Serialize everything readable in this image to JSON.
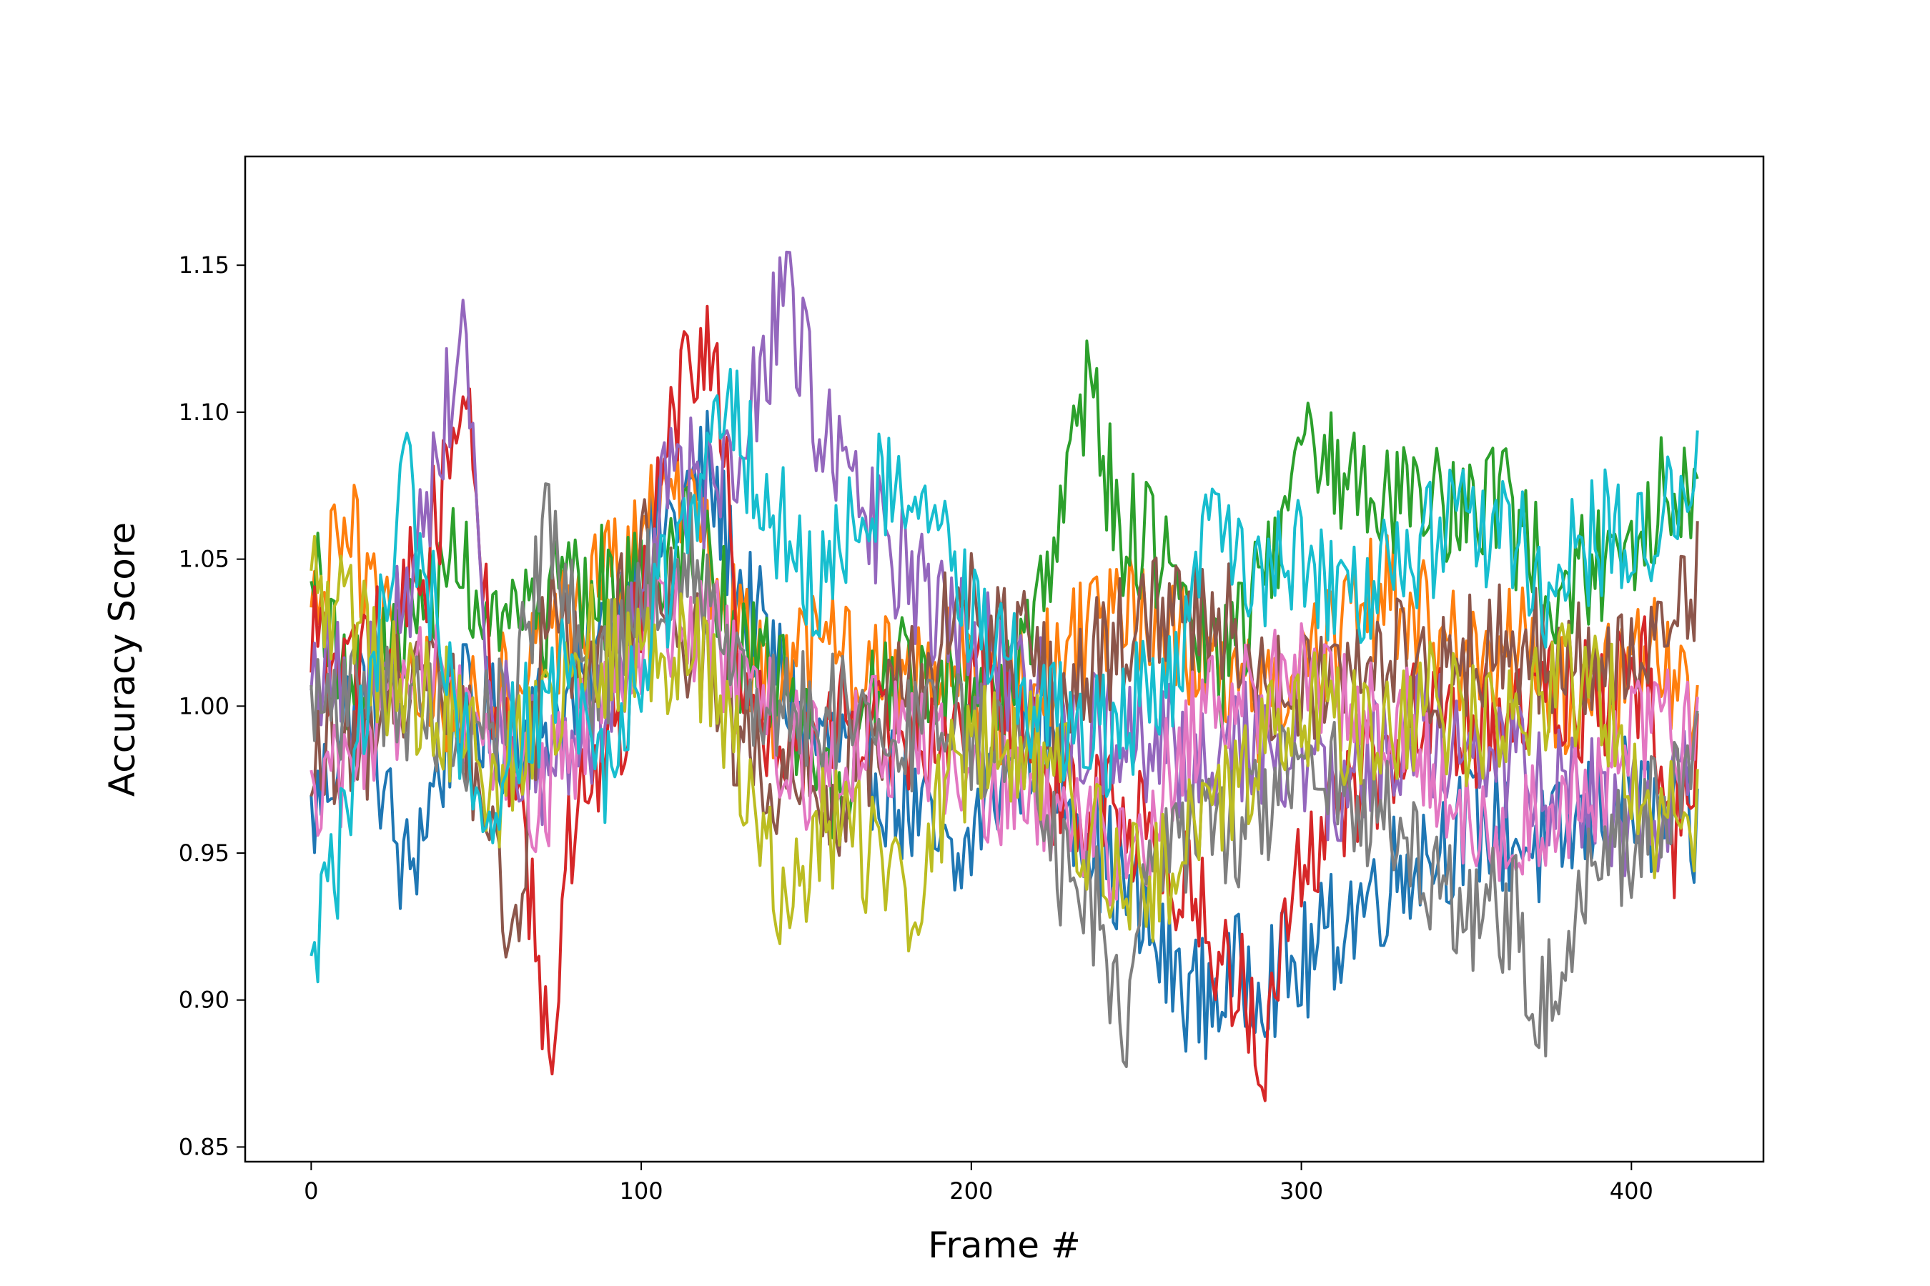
{
  "chart_data": {
    "type": "line",
    "title": "",
    "xlabel": "Frame #",
    "ylabel": "Accuracy Score",
    "xlim": [
      -20,
      440
    ],
    "ylim": [
      0.845,
      1.187
    ],
    "xticks": [
      0,
      100,
      200,
      300,
      400
    ],
    "xtick_labels": [
      "0",
      "100",
      "200",
      "300",
      "400"
    ],
    "yticks": [
      0.85,
      0.9,
      0.95,
      1.0,
      1.05,
      1.1,
      1.15
    ],
    "ytick_labels": [
      "0.85",
      "0.90",
      "0.95",
      "1.00",
      "1.05",
      "1.10",
      "1.15"
    ],
    "grid": false,
    "legend": "none",
    "x_range": [
      0,
      420
    ],
    "series": [
      {
        "color": "#1f77b4",
        "knots": [
          [
            0,
            0.96
          ],
          [
            15,
            1.01
          ],
          [
            28,
            0.94
          ],
          [
            45,
            1.0
          ],
          [
            60,
            0.99
          ],
          [
            80,
            1.0
          ],
          [
            100,
            1.05
          ],
          [
            120,
            1.08
          ],
          [
            130,
            1.04
          ],
          [
            150,
            0.99
          ],
          [
            170,
            0.98
          ],
          [
            185,
            0.96
          ],
          [
            195,
            0.94
          ],
          [
            205,
            0.97
          ],
          [
            220,
            0.99
          ],
          [
            240,
            0.95
          ],
          [
            250,
            0.93
          ],
          [
            260,
            0.91
          ],
          [
            270,
            0.9
          ],
          [
            285,
            0.91
          ],
          [
            300,
            0.91
          ],
          [
            315,
            0.93
          ],
          [
            335,
            0.95
          ],
          [
            355,
            0.96
          ],
          [
            375,
            0.95
          ],
          [
            395,
            0.97
          ],
          [
            410,
            0.96
          ],
          [
            420,
            0.955
          ]
        ]
      },
      {
        "color": "#ff7f0e",
        "knots": [
          [
            0,
            1.03
          ],
          [
            12,
            1.06
          ],
          [
            25,
            1.02
          ],
          [
            40,
            1.0
          ],
          [
            60,
            1.01
          ],
          [
            80,
            1.03
          ],
          [
            95,
            1.05
          ],
          [
            110,
            1.07
          ],
          [
            125,
            1.04
          ],
          [
            140,
            1.0
          ],
          [
            155,
            1.02
          ],
          [
            170,
            1.01
          ],
          [
            190,
            1.02
          ],
          [
            210,
            1.0
          ],
          [
            230,
            1.02
          ],
          [
            250,
            1.03
          ],
          [
            270,
            1.02
          ],
          [
            290,
            1.0
          ],
          [
            310,
            1.02
          ],
          [
            325,
            1.04
          ],
          [
            345,
            1.02
          ],
          [
            365,
            1.02
          ],
          [
            385,
            1.0
          ],
          [
            405,
            1.02
          ],
          [
            420,
            0.99
          ]
        ]
      },
      {
        "color": "#2ca02c",
        "knots": [
          [
            0,
            1.045
          ],
          [
            15,
            1.0
          ],
          [
            30,
            1.03
          ],
          [
            45,
            1.05
          ],
          [
            60,
            1.02
          ],
          [
            80,
            1.04
          ],
          [
            100,
            1.04
          ],
          [
            115,
            1.06
          ],
          [
            130,
            1.02
          ],
          [
            145,
            1.0
          ],
          [
            160,
            0.97
          ],
          [
            175,
            1.01
          ],
          [
            195,
            1.0
          ],
          [
            215,
            1.01
          ],
          [
            225,
            1.05
          ],
          [
            235,
            1.11
          ],
          [
            245,
            1.06
          ],
          [
            260,
            1.05
          ],
          [
            275,
            1.01
          ],
          [
            290,
            1.05
          ],
          [
            300,
            1.09
          ],
          [
            310,
            1.08
          ],
          [
            325,
            1.075
          ],
          [
            345,
            1.07
          ],
          [
            360,
            1.07
          ],
          [
            375,
            1.04
          ],
          [
            390,
            1.05
          ],
          [
            405,
            1.06
          ],
          [
            412,
            1.08
          ],
          [
            420,
            1.06
          ]
        ]
      },
      {
        "color": "#d62728",
        "knots": [
          [
            0,
            1.02
          ],
          [
            15,
            1.01
          ],
          [
            35,
            1.05
          ],
          [
            47,
            1.11
          ],
          [
            55,
            1.01
          ],
          [
            65,
            0.95
          ],
          [
            72,
            0.88
          ],
          [
            80,
            0.97
          ],
          [
            95,
            1.0
          ],
          [
            110,
            1.1
          ],
          [
            122,
            1.12
          ],
          [
            130,
            1.02
          ],
          [
            140,
            0.99
          ],
          [
            150,
            0.98
          ],
          [
            165,
            1.0
          ],
          [
            185,
            0.99
          ],
          [
            205,
            1.01
          ],
          [
            225,
            0.97
          ],
          [
            245,
            0.96
          ],
          [
            260,
            0.95
          ],
          [
            270,
            0.93
          ],
          [
            280,
            0.91
          ],
          [
            288,
            0.88
          ],
          [
            300,
            0.95
          ],
          [
            315,
            0.97
          ],
          [
            330,
            0.99
          ],
          [
            345,
            1.0
          ],
          [
            360,
            0.99
          ],
          [
            375,
            1.01
          ],
          [
            390,
            1.0
          ],
          [
            405,
            1.01
          ],
          [
            412,
            0.95
          ],
          [
            420,
            0.98
          ]
        ]
      },
      {
        "color": "#9467bd",
        "knots": [
          [
            0,
            1.02
          ],
          [
            15,
            1.0
          ],
          [
            30,
            1.04
          ],
          [
            46,
            1.13
          ],
          [
            55,
            1.0
          ],
          [
            70,
            0.98
          ],
          [
            90,
            1.0
          ],
          [
            110,
            1.08
          ],
          [
            125,
            1.07
          ],
          [
            135,
            1.11
          ],
          [
            145,
            1.14
          ],
          [
            155,
            1.09
          ],
          [
            170,
            1.06
          ],
          [
            185,
            1.04
          ],
          [
            200,
            1.02
          ],
          [
            215,
            1.01
          ],
          [
            235,
            0.99
          ],
          [
            250,
            0.99
          ],
          [
            270,
            0.98
          ],
          [
            290,
            0.99
          ],
          [
            310,
            0.97
          ],
          [
            330,
            0.99
          ],
          [
            345,
            0.99
          ],
          [
            365,
            0.98
          ],
          [
            385,
            0.97
          ],
          [
            405,
            0.96
          ],
          [
            420,
            0.985
          ]
        ]
      },
      {
        "color": "#8c564b",
        "knots": [
          [
            0,
            0.99
          ],
          [
            10,
            0.98
          ],
          [
            25,
            1.0
          ],
          [
            35,
            1.02
          ],
          [
            50,
            0.98
          ],
          [
            62,
            0.92
          ],
          [
            72,
            1.04
          ],
          [
            85,
            1.01
          ],
          [
            100,
            1.05
          ],
          [
            115,
            1.02
          ],
          [
            130,
            0.99
          ],
          [
            140,
            0.97
          ],
          [
            160,
            0.97
          ],
          [
            180,
            1.01
          ],
          [
            195,
            1.03
          ],
          [
            210,
            1.03
          ],
          [
            225,
            1.0
          ],
          [
            240,
            1.02
          ],
          [
            260,
            1.03
          ],
          [
            275,
            1.03
          ],
          [
            290,
            1.01
          ],
          [
            305,
            1.0
          ],
          [
            325,
            1.02
          ],
          [
            340,
            1.01
          ],
          [
            360,
            1.02
          ],
          [
            380,
            1.02
          ],
          [
            395,
            1.01
          ],
          [
            410,
            1.02
          ],
          [
            416,
            1.04
          ],
          [
            420,
            1.045
          ]
        ]
      },
      {
        "color": "#e377c2",
        "knots": [
          [
            0,
            0.96
          ],
          [
            10,
            0.98
          ],
          [
            25,
            1.0
          ],
          [
            40,
            1.01
          ],
          [
            55,
            0.99
          ],
          [
            70,
            0.97
          ],
          [
            85,
            1.0
          ],
          [
            105,
            1.03
          ],
          [
            120,
            1.03
          ],
          [
            135,
            1.0
          ],
          [
            150,
            0.98
          ],
          [
            170,
            0.99
          ],
          [
            190,
            0.98
          ],
          [
            210,
            0.97
          ],
          [
            230,
            0.96
          ],
          [
            250,
            0.95
          ],
          [
            265,
            0.99
          ],
          [
            280,
            1.0
          ],
          [
            295,
            1.01
          ],
          [
            315,
            1.0
          ],
          [
            335,
            0.99
          ],
          [
            355,
            0.96
          ],
          [
            375,
            0.96
          ],
          [
            395,
            0.98
          ],
          [
            410,
            1.0
          ],
          [
            420,
            0.985
          ]
        ]
      },
      {
        "color": "#7f7f7f",
        "knots": [
          [
            0,
            0.995
          ],
          [
            15,
            1.01
          ],
          [
            30,
            1.0
          ],
          [
            45,
            0.99
          ],
          [
            60,
            1.0
          ],
          [
            72,
            1.06
          ],
          [
            85,
            1.0
          ],
          [
            100,
            1.04
          ],
          [
            115,
            1.05
          ],
          [
            130,
            1.0
          ],
          [
            145,
            1.0
          ],
          [
            160,
            1.0
          ],
          [
            175,
            0.99
          ],
          [
            195,
            0.99
          ],
          [
            210,
            0.99
          ],
          [
            225,
            0.95
          ],
          [
            240,
            0.93
          ],
          [
            246,
            0.88
          ],
          [
            255,
            0.95
          ],
          [
            270,
            0.96
          ],
          [
            285,
            0.96
          ],
          [
            300,
            0.98
          ],
          [
            315,
            0.97
          ],
          [
            335,
            0.95
          ],
          [
            350,
            0.93
          ],
          [
            365,
            0.93
          ],
          [
            372,
            0.89
          ],
          [
            380,
            0.92
          ],
          [
            390,
            0.95
          ],
          [
            405,
            0.96
          ],
          [
            420,
            0.98
          ]
        ]
      },
      {
        "color": "#bcbd22",
        "knots": [
          [
            0,
            1.04
          ],
          [
            10,
            1.03
          ],
          [
            25,
            1.01
          ],
          [
            40,
            1.0
          ],
          [
            55,
            0.97
          ],
          [
            70,
            1.0
          ],
          [
            85,
            1.02
          ],
          [
            100,
            1.01
          ],
          [
            115,
            1.02
          ],
          [
            125,
            1.0
          ],
          [
            135,
            0.96
          ],
          [
            145,
            0.93
          ],
          [
            155,
            0.96
          ],
          [
            170,
            0.95
          ],
          [
            180,
            0.93
          ],
          [
            195,
            0.98
          ],
          [
            210,
            0.99
          ],
          [
            225,
            0.98
          ],
          [
            240,
            0.95
          ],
          [
            255,
            0.94
          ],
          [
            270,
            0.96
          ],
          [
            285,
            0.98
          ],
          [
            300,
            1.0
          ],
          [
            320,
            0.99
          ],
          [
            340,
            1.0
          ],
          [
            360,
            0.99
          ],
          [
            380,
            1.01
          ],
          [
            395,
            1.0
          ],
          [
            405,
            0.96
          ],
          [
            420,
            0.96
          ]
        ]
      },
      {
        "color": "#17becf",
        "knots": [
          [
            0,
            0.915
          ],
          [
            8,
            0.95
          ],
          [
            18,
            1.0
          ],
          [
            27,
            1.08
          ],
          [
            38,
            1.03
          ],
          [
            52,
            0.96
          ],
          [
            62,
            0.99
          ],
          [
            75,
            1.01
          ],
          [
            88,
            0.97
          ],
          [
            100,
            1.02
          ],
          [
            115,
            1.06
          ],
          [
            128,
            1.1
          ],
          [
            138,
            1.07
          ],
          [
            152,
            1.04
          ],
          [
            165,
            1.06
          ],
          [
            178,
            1.08
          ],
          [
            190,
            1.06
          ],
          [
            205,
            1.02
          ],
          [
            220,
            1.0
          ],
          [
            240,
            0.99
          ],
          [
            260,
            1.01
          ],
          [
            272,
            1.06
          ],
          [
            285,
            1.04
          ],
          [
            300,
            1.05
          ],
          [
            315,
            1.04
          ],
          [
            330,
            1.05
          ],
          [
            345,
            1.06
          ],
          [
            360,
            1.06
          ],
          [
            375,
            1.04
          ],
          [
            390,
            1.06
          ],
          [
            405,
            1.06
          ],
          [
            415,
            1.07
          ],
          [
            420,
            1.075
          ]
        ]
      }
    ]
  }
}
